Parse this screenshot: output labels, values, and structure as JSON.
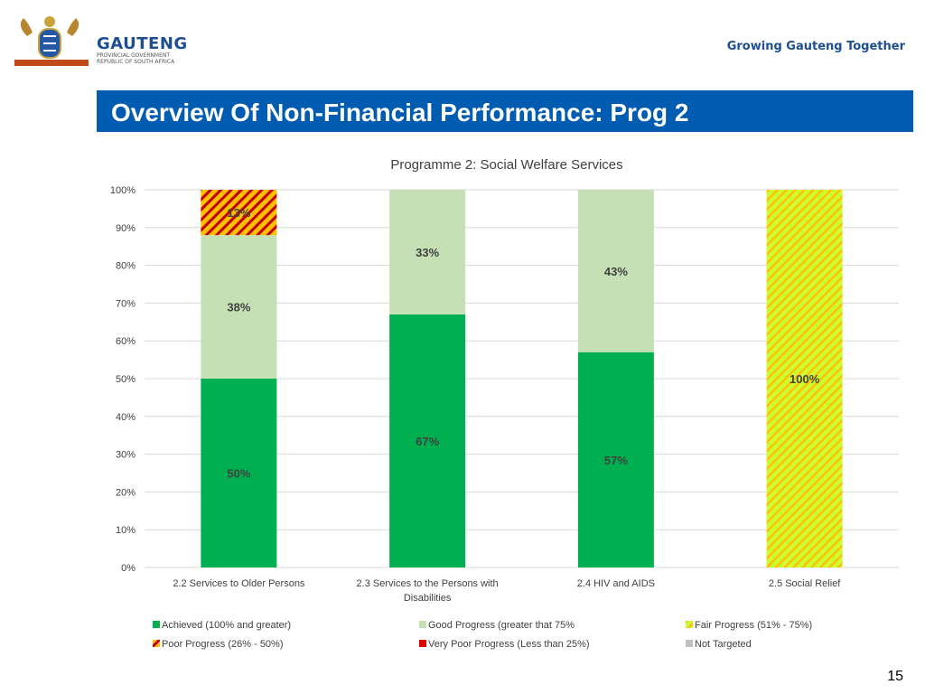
{
  "header": {
    "brand_name": "GAUTENG",
    "brand_sub_1": "PROVINCIAL GOVERNMENT",
    "brand_sub_2": "REPUBLIC OF SOUTH AFRICA",
    "tagline": "Growing Gauteng Together"
  },
  "slide": {
    "title": "Overview Of Non-Financial Performance: Prog 2",
    "page_number": "15"
  },
  "colors": {
    "title_bar": "#005cb0",
    "achieved": "#00b050",
    "good": "#c5e0b4",
    "fair_a": "#ccff33",
    "fair_b": "#ffc000",
    "poor_a": "#ffc000",
    "poor_b": "#c00000",
    "very_poor": "#e00000",
    "not_targeted": "#bfbfbf"
  },
  "chart_data": {
    "type": "bar",
    "stacked": true,
    "title": "Programme 2: Social Welfare Services",
    "categories": [
      [
        "2.2 Services to Older Persons"
      ],
      [
        "2.3 Services to the Persons with",
        "Disabilities"
      ],
      [
        "2.4 HIV and AIDS"
      ],
      [
        "2.5 Social Relief"
      ]
    ],
    "ylim": [
      0,
      100
    ],
    "yticks": [
      "0%",
      "10%",
      "20%",
      "30%",
      "40%",
      "50%",
      "60%",
      "70%",
      "80%",
      "90%",
      "100%"
    ],
    "grid": true,
    "legend_position": "bottom",
    "series": [
      {
        "name": "Achieved (100%  and greater)",
        "key": "achieved",
        "values": [
          50,
          67,
          57,
          0
        ],
        "labels": [
          "50%",
          "67%",
          "57%",
          ""
        ]
      },
      {
        "name": "Good Progress (greater that 75%",
        "key": "good",
        "values": [
          38,
          33,
          43,
          0
        ],
        "labels": [
          "38%",
          "33%",
          "43%",
          ""
        ]
      },
      {
        "name": "Fair Progress (51% - 75%)",
        "key": "fair",
        "values": [
          0,
          0,
          0,
          100
        ],
        "labels": [
          "",
          "",
          "",
          "100%"
        ]
      },
      {
        "name": "Poor Progress (26% - 50%)",
        "key": "poor",
        "values": [
          13,
          0,
          0,
          0
        ],
        "labels": [
          "13%",
          "",
          "",
          ""
        ]
      },
      {
        "name": "Very Poor Progress (Less than 25%)",
        "key": "very_poor",
        "values": [
          0,
          0,
          0,
          0
        ],
        "labels": [
          "",
          "",
          "",
          ""
        ]
      },
      {
        "name": "Not Targeted",
        "key": "not_targeted",
        "values": [
          0,
          0,
          0,
          0
        ],
        "labels": [
          "",
          "",
          "",
          ""
        ]
      }
    ]
  }
}
